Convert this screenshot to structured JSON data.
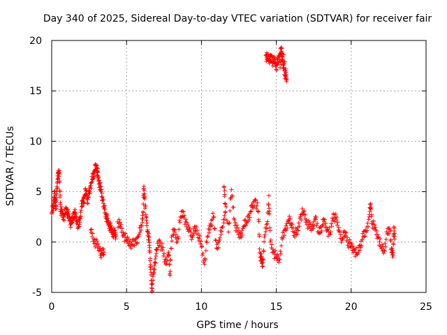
{
  "chart_data": {
    "type": "scatter",
    "title": "Day 340 of 2025, Sidereal Day-to-day VTEC variation (SDTVAR) for receiver fair",
    "xlabel": "GPS time / hours",
    "ylabel": "SDTVAR / TECUs",
    "xlim": [
      0,
      25
    ],
    "ylim": [
      -5,
      20
    ],
    "xticks": [
      "0",
      "5",
      "10",
      "15",
      "20",
      "25"
    ],
    "yticks": [
      "-5",
      "0",
      "5",
      "10",
      "15",
      "20"
    ],
    "grid": true,
    "marker": "plus",
    "color": "#ff0000",
    "series": [
      {
        "name": "SDTVAR",
        "points": [
          [
            0.0,
            2.8
          ],
          [
            0.1,
            3.5
          ],
          [
            0.15,
            4.2
          ],
          [
            0.2,
            4.8
          ],
          [
            0.25,
            4.0
          ],
          [
            0.3,
            3.3
          ],
          [
            0.35,
            5.5
          ],
          [
            0.4,
            6.2
          ],
          [
            0.45,
            6.8
          ],
          [
            0.5,
            7.1
          ],
          [
            0.55,
            5.0
          ],
          [
            0.6,
            3.2
          ],
          [
            0.7,
            2.8
          ],
          [
            0.8,
            2.5
          ],
          [
            0.9,
            2.9
          ],
          [
            1.0,
            3.3
          ],
          [
            1.1,
            2.6
          ],
          [
            1.2,
            2.2
          ],
          [
            1.3,
            1.8
          ],
          [
            1.4,
            2.3
          ],
          [
            1.5,
            3.0
          ],
          [
            1.6,
            2.5
          ],
          [
            1.7,
            2.0
          ],
          [
            1.8,
            1.5
          ],
          [
            1.9,
            2.5
          ],
          [
            2.0,
            3.5
          ],
          [
            2.1,
            4.0
          ],
          [
            2.2,
            4.6
          ],
          [
            2.3,
            5.1
          ],
          [
            2.4,
            4.2
          ],
          [
            2.5,
            4.8
          ],
          [
            2.6,
            5.6
          ],
          [
            2.7,
            6.2
          ],
          [
            2.8,
            6.8
          ],
          [
            2.9,
            7.2
          ],
          [
            3.0,
            7.4
          ],
          [
            3.05,
            7.0
          ],
          [
            3.1,
            6.4
          ],
          [
            3.2,
            5.8
          ],
          [
            3.3,
            5.0
          ],
          [
            3.4,
            4.2
          ],
          [
            3.5,
            3.5
          ],
          [
            3.6,
            2.8
          ],
          [
            3.7,
            2.2
          ],
          [
            3.8,
            1.8
          ],
          [
            3.9,
            1.5
          ],
          [
            4.0,
            1.2
          ],
          [
            4.1,
            1.0
          ],
          [
            4.2,
            0.8
          ],
          [
            4.3,
            0.6
          ],
          [
            2.6,
            1.2
          ],
          [
            2.8,
            0.3
          ],
          [
            3.0,
            -0.3
          ],
          [
            3.2,
            -0.8
          ],
          [
            3.35,
            -1.2
          ],
          [
            3.5,
            -1.0
          ],
          [
            4.4,
            2.0
          ],
          [
            4.6,
            1.5
          ],
          [
            4.8,
            0.7
          ],
          [
            5.0,
            0.2
          ],
          [
            5.2,
            0.0
          ],
          [
            5.4,
            -0.3
          ],
          [
            5.6,
            0.0
          ],
          [
            5.8,
            0.6
          ],
          [
            6.0,
            1.6
          ],
          [
            6.1,
            3.0
          ],
          [
            6.15,
            5.3
          ],
          [
            6.2,
            4.5
          ],
          [
            6.3,
            2.5
          ],
          [
            6.4,
            1.2
          ],
          [
            6.5,
            0.2
          ],
          [
            6.55,
            -1.0
          ],
          [
            6.6,
            -2.5
          ],
          [
            6.65,
            -3.8
          ],
          [
            6.7,
            -4.6
          ],
          [
            6.8,
            -3.2
          ],
          [
            6.9,
            -2.0
          ],
          [
            7.0,
            -0.8
          ],
          [
            7.2,
            0.2
          ],
          [
            7.4,
            -0.8
          ],
          [
            7.6,
            -2.2
          ],
          [
            7.8,
            -1.0
          ],
          [
            7.9,
            -3.3
          ],
          [
            8.0,
            0.5
          ],
          [
            8.2,
            1.0
          ],
          [
            8.4,
            0.0
          ],
          [
            8.6,
            2.5
          ],
          [
            8.8,
            3.0
          ],
          [
            9.0,
            1.5
          ],
          [
            9.2,
            1.2
          ],
          [
            9.4,
            0.5
          ],
          [
            9.6,
            1.5
          ],
          [
            9.8,
            0.8
          ],
          [
            10.0,
            -0.5
          ],
          [
            10.2,
            -2.2
          ],
          [
            10.4,
            0.5
          ],
          [
            10.6,
            1.8
          ],
          [
            10.8,
            2.5
          ],
          [
            11.0,
            -0.6
          ],
          [
            11.2,
            0.2
          ],
          [
            11.4,
            1.5
          ],
          [
            11.6,
            3.0
          ],
          [
            11.5,
            5.5
          ],
          [
            11.8,
            1.0
          ],
          [
            12.0,
            5.2
          ],
          [
            12.2,
            2.2
          ],
          [
            12.4,
            1.0
          ],
          [
            12.6,
            0.5
          ],
          [
            12.8,
            1.5
          ],
          [
            13.0,
            2.0
          ],
          [
            13.2,
            2.8
          ],
          [
            13.4,
            3.4
          ],
          [
            13.6,
            4.2
          ],
          [
            13.8,
            3.0
          ],
          [
            13.9,
            -1.0
          ],
          [
            14.0,
            -1.8
          ],
          [
            14.1,
            -2.4
          ],
          [
            14.2,
            0.5
          ],
          [
            14.4,
            1.8
          ],
          [
            14.5,
            4.6
          ],
          [
            14.6,
            0.0
          ],
          [
            14.8,
            -1.0
          ],
          [
            15.0,
            -1.5
          ],
          [
            15.2,
            -1.7
          ],
          [
            15.4,
            0.3
          ],
          [
            15.6,
            1.2
          ],
          [
            15.8,
            2.2
          ],
          [
            16.0,
            1.8
          ],
          [
            16.2,
            1.0
          ],
          [
            16.4,
            0.8
          ],
          [
            16.6,
            2.5
          ],
          [
            16.8,
            3.0
          ],
          [
            17.0,
            2.2
          ],
          [
            17.2,
            1.5
          ],
          [
            17.4,
            1.3
          ],
          [
            17.6,
            2.5
          ],
          [
            17.8,
            1.0
          ],
          [
            18.0,
            1.5
          ],
          [
            18.2,
            2.0
          ],
          [
            18.4,
            1.2
          ],
          [
            18.6,
            0.8
          ],
          [
            18.8,
            2.8
          ],
          [
            19.0,
            2.2
          ],
          [
            19.2,
            1.0
          ],
          [
            19.4,
            0.2
          ],
          [
            19.6,
            1.0
          ],
          [
            19.8,
            0.0
          ],
          [
            20.0,
            -0.5
          ],
          [
            20.2,
            -0.8
          ],
          [
            20.4,
            -1.2
          ],
          [
            20.6,
            -0.3
          ],
          [
            20.8,
            0.5
          ],
          [
            21.0,
            1.0
          ],
          [
            21.2,
            2.5
          ],
          [
            21.3,
            3.8
          ],
          [
            21.4,
            2.0
          ],
          [
            21.6,
            1.2
          ],
          [
            21.8,
            0.5
          ],
          [
            22.0,
            -0.5
          ],
          [
            22.2,
            -0.8
          ],
          [
            22.4,
            0.8
          ],
          [
            22.6,
            1.2
          ],
          [
            22.7,
            -1.0
          ],
          [
            22.8,
            -1.3
          ],
          [
            22.85,
            1.5
          ],
          [
            22.9,
            0.3
          ],
          [
            14.3,
            18.5
          ],
          [
            14.4,
            18.2
          ],
          [
            14.5,
            18.4
          ],
          [
            14.6,
            18.0
          ],
          [
            14.7,
            18.3
          ],
          [
            14.8,
            17.8
          ],
          [
            14.9,
            18.1
          ],
          [
            15.0,
            17.5
          ],
          [
            15.1,
            17.8
          ],
          [
            15.2,
            18.5
          ],
          [
            15.3,
            18.8
          ],
          [
            15.35,
            19.2
          ],
          [
            15.4,
            18.0
          ],
          [
            15.5,
            17.2
          ],
          [
            15.6,
            16.5
          ],
          [
            15.7,
            16.1
          ],
          [
            15.5,
            18.6
          ],
          [
            15.25,
            17.3
          ]
        ]
      }
    ]
  }
}
